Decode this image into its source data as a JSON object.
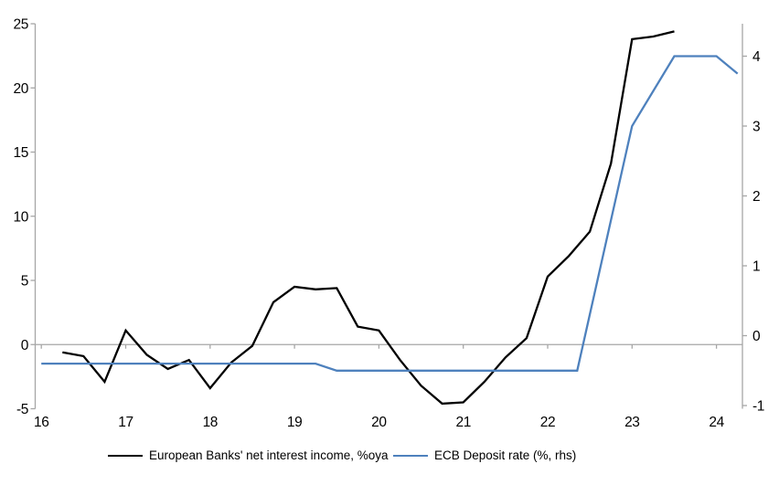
{
  "chart_data": {
    "type": "line",
    "title": "",
    "x_axis": {
      "ticks": [
        16,
        17,
        18,
        19,
        20,
        21,
        22,
        23,
        24
      ],
      "range": [
        16,
        24.3
      ],
      "label": ""
    },
    "left_axis": {
      "ticks": [
        25,
        20,
        15,
        10,
        5,
        0,
        -5
      ],
      "range": [
        -5,
        25
      ],
      "label": ""
    },
    "right_axis": {
      "ticks": [
        4,
        3,
        2,
        1,
        0,
        -1
      ],
      "range": [
        -1,
        4.5
      ],
      "label": ""
    },
    "grid": "zero-line-only",
    "legend_position": "bottom",
    "series": [
      {
        "name": "European Banks' net interest income, %oya",
        "axis": "left",
        "color": "#000000",
        "points": [
          [
            16.25,
            -0.6
          ],
          [
            16.5,
            -0.9
          ],
          [
            16.75,
            -2.9
          ],
          [
            17.0,
            1.1
          ],
          [
            17.25,
            -0.8
          ],
          [
            17.5,
            -1.9
          ],
          [
            17.75,
            -1.2
          ],
          [
            18.0,
            -3.4
          ],
          [
            18.25,
            -1.4
          ],
          [
            18.5,
            -0.1
          ],
          [
            18.75,
            3.3
          ],
          [
            19.0,
            4.5
          ],
          [
            19.25,
            4.3
          ],
          [
            19.5,
            4.4
          ],
          [
            19.75,
            1.4
          ],
          [
            20.0,
            1.1
          ],
          [
            20.25,
            -1.2
          ],
          [
            20.5,
            -3.2
          ],
          [
            20.75,
            -4.6
          ],
          [
            21.0,
            -4.5
          ],
          [
            21.25,
            -2.9
          ],
          [
            21.5,
            -1.0
          ],
          [
            21.75,
            0.5
          ],
          [
            22.0,
            5.3
          ],
          [
            22.25,
            6.9
          ],
          [
            22.5,
            8.8
          ],
          [
            22.75,
            14.1
          ],
          [
            23.0,
            23.8
          ],
          [
            23.25,
            24.0
          ],
          [
            23.5,
            24.4
          ]
        ]
      },
      {
        "name": "ECB Deposit rate (%, rhs)",
        "axis": "right",
        "color": "#4E81BD",
        "points": [
          [
            16.0,
            -0.4
          ],
          [
            19.25,
            -0.4
          ],
          [
            19.5,
            -0.5
          ],
          [
            22.35,
            -0.5
          ],
          [
            23.0,
            3.0
          ],
          [
            23.5,
            4.0
          ],
          [
            24.0,
            4.0
          ],
          [
            24.25,
            3.75
          ]
        ]
      }
    ],
    "colors": {
      "background": "#FFFFFF",
      "axis": "#A6A6A6",
      "zero_line": "#A6A6A6",
      "series_nii": "#000000",
      "series_ecb": "#4E81BD",
      "text": "#000000"
    }
  }
}
